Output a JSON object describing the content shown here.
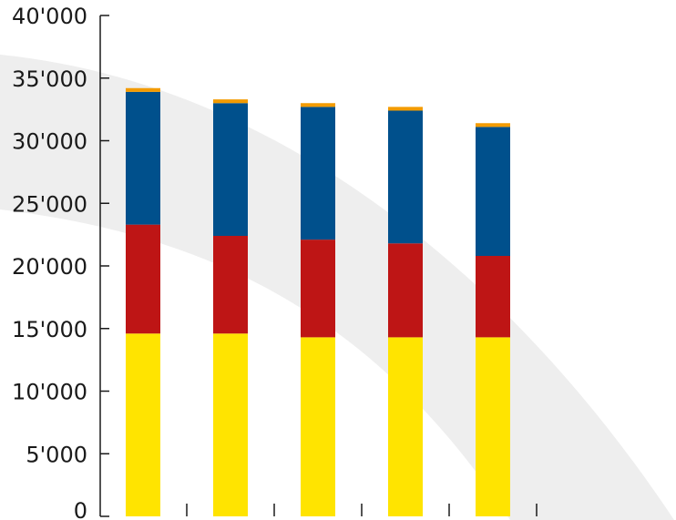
{
  "chart_data": {
    "type": "bar",
    "stacked": true,
    "categories": [
      "",
      "",
      "",
      "",
      ""
    ],
    "series": [
      {
        "values": [
          14600,
          14600,
          14300,
          14300,
          14300
        ],
        "color": "#ffe400"
      },
      {
        "values": [
          8700,
          7800,
          7800,
          7500,
          6500
        ],
        "color": "#be1515"
      },
      {
        "values": [
          10600,
          10600,
          10600,
          10600,
          10300
        ],
        "color": "#00508c"
      },
      {
        "values": [
          300,
          300,
          300,
          300,
          300
        ],
        "color": "#f39b00"
      }
    ],
    "ylim": [
      0,
      40000
    ],
    "yticks": [
      0,
      5000,
      10000,
      15000,
      20000,
      25000,
      30000,
      35000,
      40000
    ],
    "ytick_labels": [
      "0",
      "5'000",
      "10'000",
      "15'000",
      "20'000",
      "25'000",
      "30'000",
      "35'000",
      "40'000"
    ],
    "title": "",
    "xlabel": "",
    "ylabel": "",
    "grid": false,
    "background_swoosh_color": "#eeeeee"
  }
}
